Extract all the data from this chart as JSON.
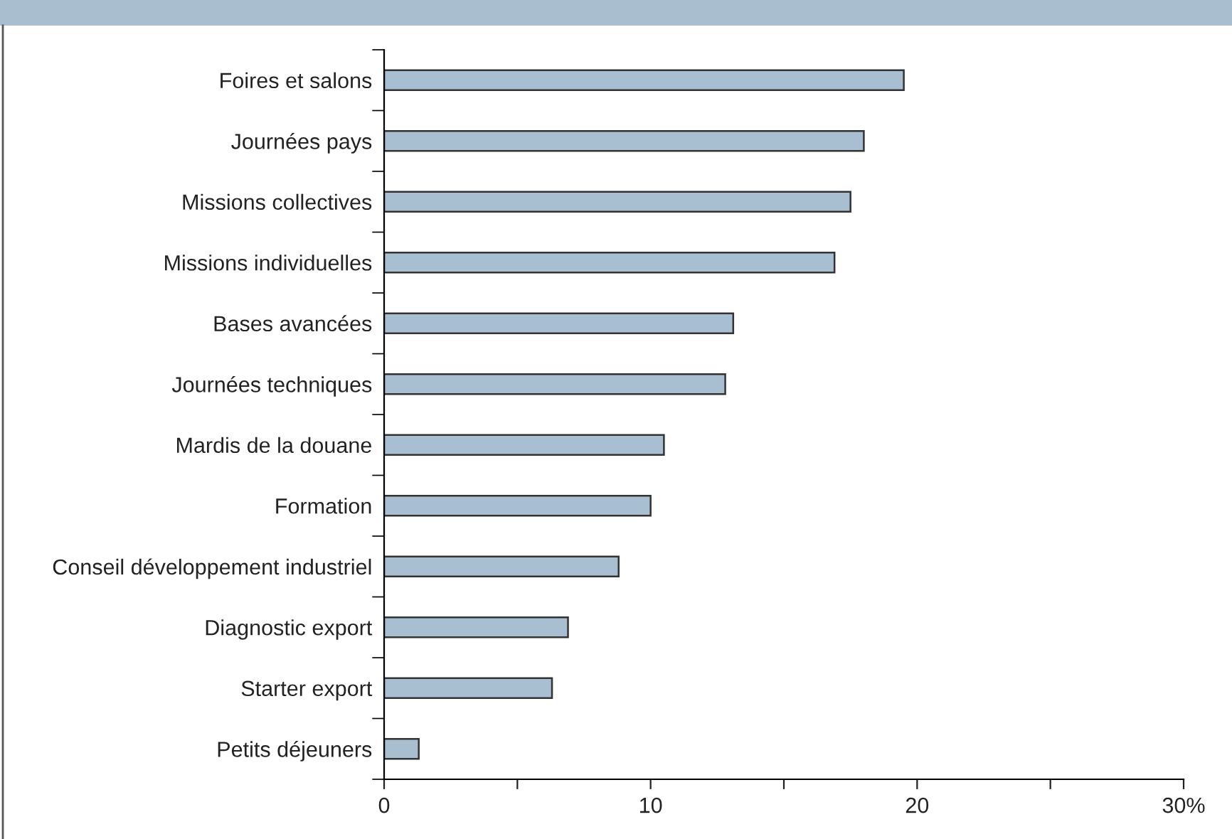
{
  "chart_data": {
    "type": "bar",
    "orientation": "horizontal",
    "categories": [
      "Foires et salons",
      "Journées pays",
      "Missions collectives",
      "Missions individuelles",
      "Bases avancées",
      "Journées techniques",
      "Mardis de la douane",
      "Formation",
      "Conseil développement industriel",
      "Diagnostic export",
      "Starter export",
      "Petits déjeuners"
    ],
    "values": [
      19.5,
      18.0,
      17.5,
      16.9,
      13.1,
      12.8,
      10.5,
      10.0,
      8.8,
      6.9,
      6.3,
      1.3
    ],
    "color": "#a8bfd2",
    "xlim": [
      0,
      30
    ],
    "xticks": [
      0,
      {
        "value": 5,
        "label": null
      },
      10,
      {
        "value": 15,
        "label": null
      },
      20,
      {
        "value": 25,
        "label": null
      },
      {
        "value": 30,
        "label": "30%"
      }
    ],
    "grid": false,
    "legend": false
  }
}
